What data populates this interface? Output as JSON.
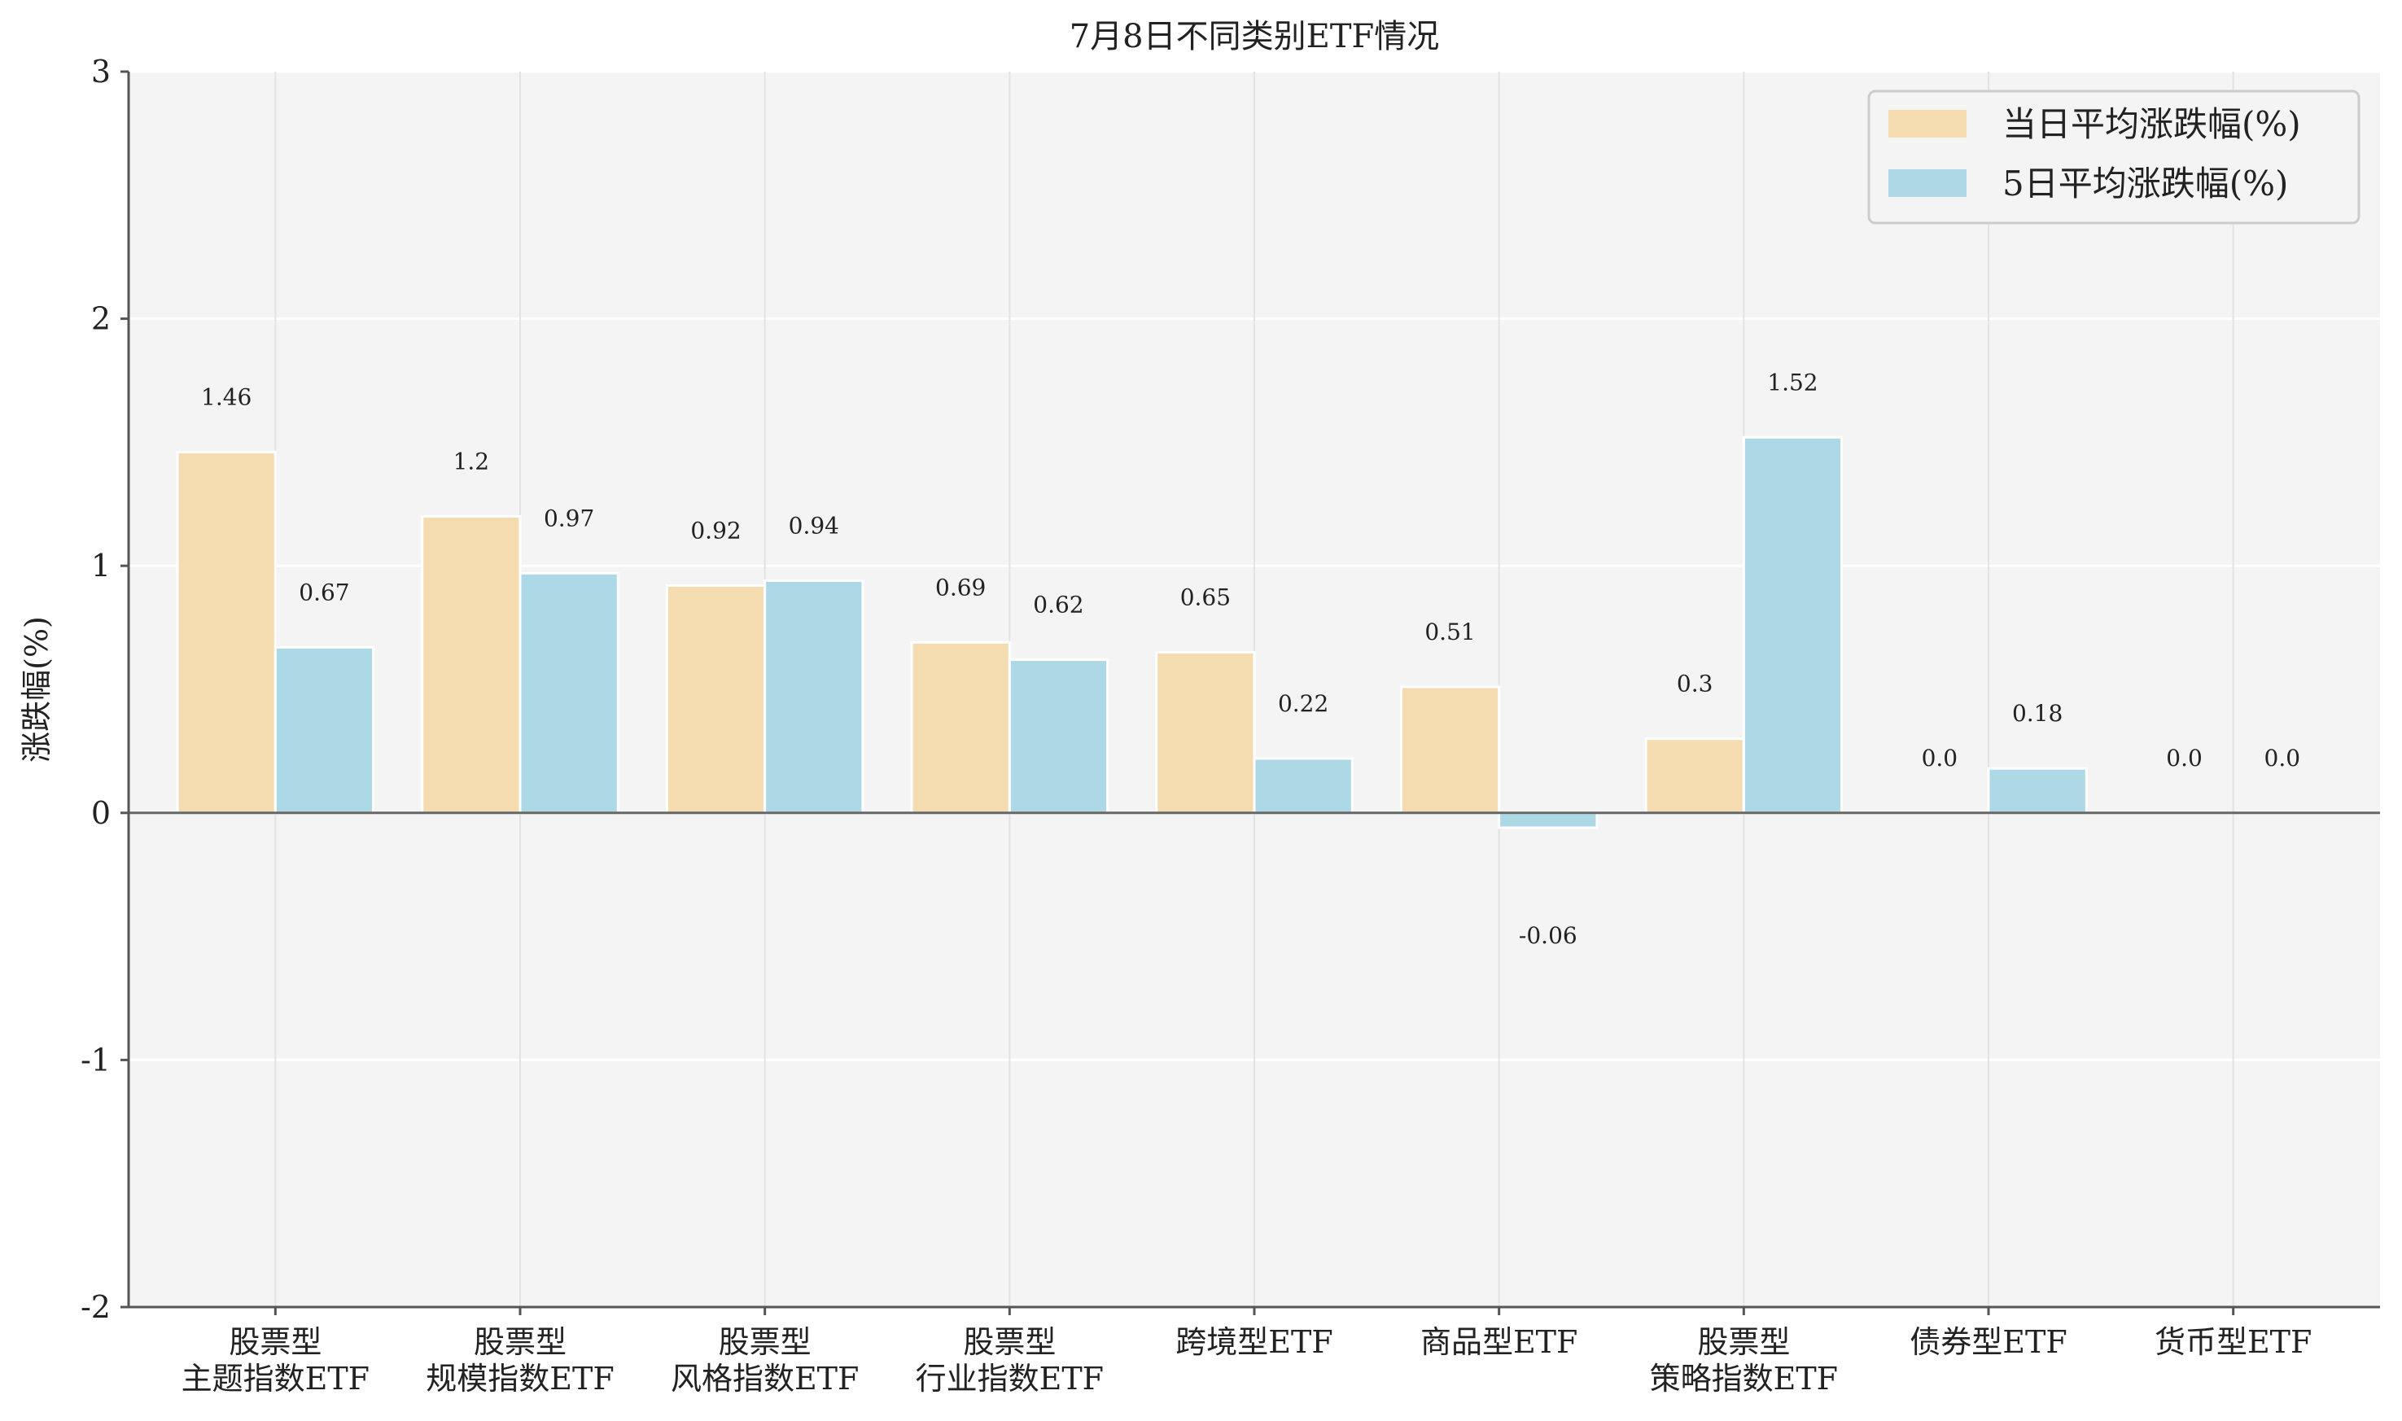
{
  "chart_data": {
    "type": "bar",
    "title": "7月8日不同类别ETF情况",
    "xlabel": "",
    "ylabel": "涨跌幅(%)",
    "ylim": [
      -2,
      3
    ],
    "yticks": [
      "-2",
      "-1",
      "0",
      "1",
      "2",
      "3"
    ],
    "grid": true,
    "legend_position": "top-right",
    "categories": [
      [
        "股票型",
        "主题指数ETF"
      ],
      [
        "股票型",
        "规模指数ETF"
      ],
      [
        "股票型",
        "风格指数ETF"
      ],
      [
        "股票型",
        "行业指数ETF"
      ],
      [
        "跨境型ETF"
      ],
      [
        "商品型ETF"
      ],
      [
        "股票型",
        "策略指数ETF"
      ],
      [
        "债券型ETF"
      ],
      [
        "货币型ETF"
      ]
    ],
    "series": [
      {
        "name": "当日平均涨跌幅(%)",
        "color": "#f5dcb0",
        "values": [
          1.46,
          1.2,
          0.92,
          0.69,
          0.65,
          0.51,
          0.3,
          0.0,
          0.0
        ],
        "labels": [
          "1.46",
          "1.2",
          "0.92",
          "0.69",
          "0.65",
          "0.51",
          "0.3",
          "0.0",
          "0.0"
        ]
      },
      {
        "name": "5日平均涨跌幅(%)",
        "color": "#add8e6",
        "values": [
          0.67,
          0.97,
          0.94,
          0.62,
          0.22,
          -0.06,
          1.52,
          0.18,
          0.0
        ],
        "labels": [
          "0.67",
          "0.97",
          "0.94",
          "0.62",
          "0.22",
          "-0.06",
          "1.52",
          "0.18",
          "0.0"
        ]
      }
    ]
  }
}
